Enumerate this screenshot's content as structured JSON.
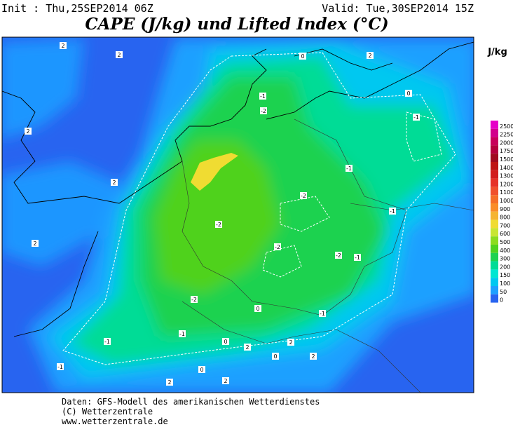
{
  "header": {
    "init": "Init : Thu,25SEP2014 06Z",
    "valid": "Valid: Tue,30SEP2014 15Z",
    "title": "CAPE (J/kg) und Lifted Index (°C)"
  },
  "legend": {
    "unit": "J/kg",
    "levels": [
      {
        "value": 2500,
        "color": "#e600c8"
      },
      {
        "value": 2250,
        "color": "#d2008c"
      },
      {
        "value": 2000,
        "color": "#c8005a"
      },
      {
        "value": 1750,
        "color": "#b4003c"
      },
      {
        "value": 1500,
        "color": "#a00a1e"
      },
      {
        "value": 1400,
        "color": "#be1414"
      },
      {
        "value": 1300,
        "color": "#d21e1e"
      },
      {
        "value": 1200,
        "color": "#e63228"
      },
      {
        "value": 1100,
        "color": "#f0502d"
      },
      {
        "value": 1000,
        "color": "#f56e28"
      },
      {
        "value": 900,
        "color": "#fa8c28"
      },
      {
        "value": 800,
        "color": "#f5b432"
      },
      {
        "value": 700,
        "color": "#f0dc32"
      },
      {
        "value": 600,
        "color": "#c8e632"
      },
      {
        "value": 500,
        "color": "#8cdc1e"
      },
      {
        "value": 400,
        "color": "#50d21e"
      },
      {
        "value": 300,
        "color": "#1ed250"
      },
      {
        "value": 200,
        "color": "#00dc96"
      },
      {
        "value": 150,
        "color": "#00e6d2"
      },
      {
        "value": 100,
        "color": "#00c8f0"
      },
      {
        "value": 50,
        "color": "#1ea0ff"
      },
      {
        "value": 0,
        "color": "#2864f0"
      }
    ]
  },
  "contour_labels": [
    "2",
    "2",
    "2",
    "2",
    "2",
    "0",
    "2",
    "0",
    "-1",
    "-2",
    "-1",
    "-1",
    "-2",
    "-1",
    "-2",
    "-2",
    "-2",
    "-1",
    "-2",
    "0",
    "-1",
    "-1",
    "-1",
    "0",
    "2",
    "2",
    "0",
    "2",
    "-1",
    "0",
    "2",
    "2"
  ],
  "footer": [
    "Daten: GFS-Modell des amerikanischen Wetterdienstes",
    "(C) Wetterzentrale",
    "www.wetterzentrale.de"
  ]
}
